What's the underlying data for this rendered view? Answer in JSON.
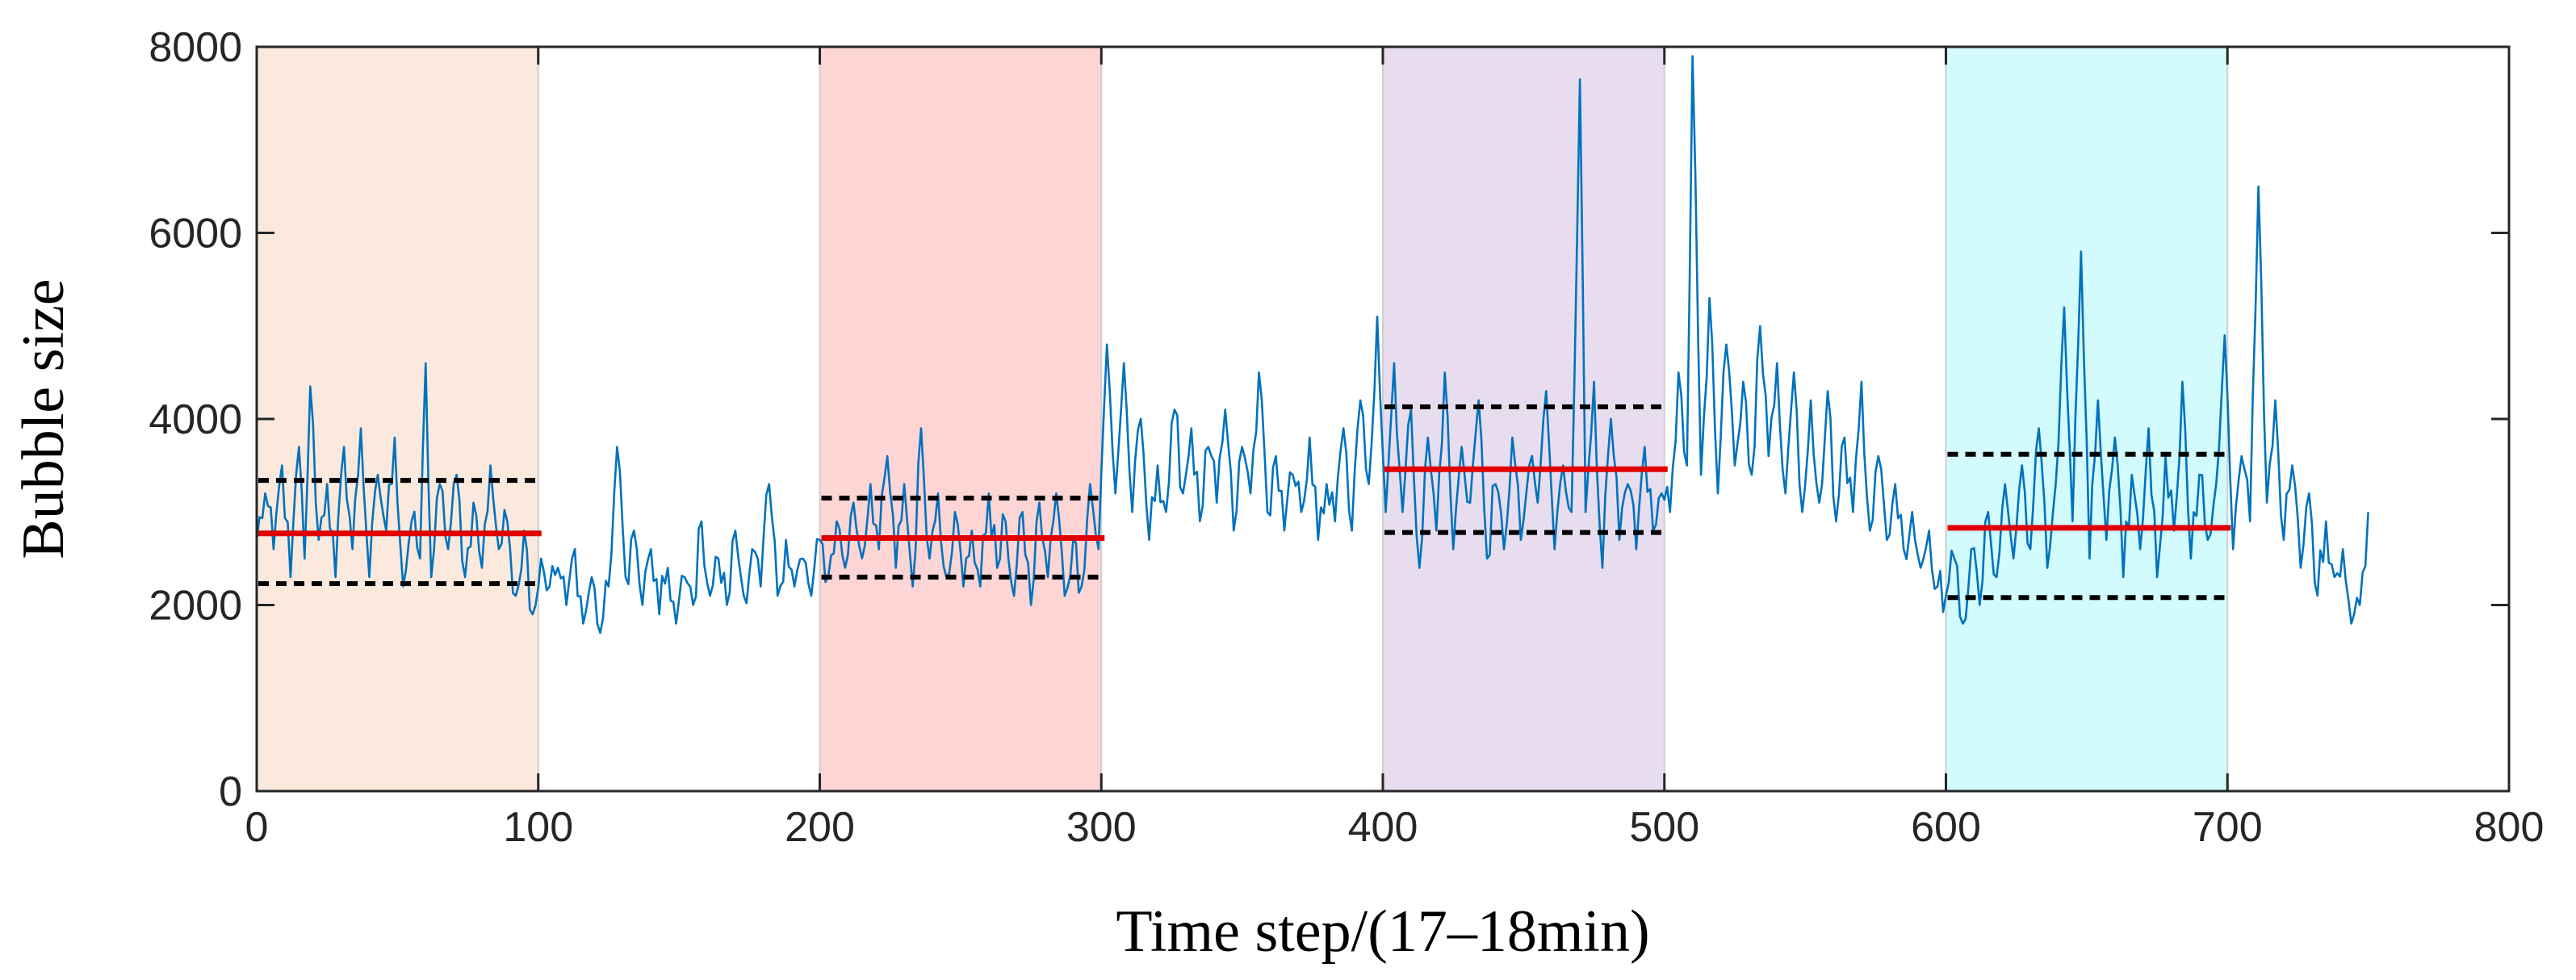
{
  "chart_data": {
    "type": "line",
    "title": "",
    "xlabel": "Time step/(17–18min)",
    "ylabel": "Bubble size",
    "xlim": [
      0,
      800
    ],
    "ylim": [
      0,
      8000
    ],
    "xticks": [
      0,
      100,
      200,
      300,
      400,
      500,
      600,
      700,
      800
    ],
    "yticks": [
      0,
      2000,
      4000,
      6000,
      8000
    ],
    "grid": false,
    "line_color": "#0072BD",
    "anchors": [
      [
        0,
        2700
      ],
      [
        3,
        3200
      ],
      [
        6,
        2600
      ],
      [
        9,
        3500
      ],
      [
        12,
        2300
      ],
      [
        15,
        3700
      ],
      [
        17,
        2500
      ],
      [
        19,
        4350
      ],
      [
        22,
        2700
      ],
      [
        25,
        3300
      ],
      [
        28,
        2300
      ],
      [
        31,
        3700
      ],
      [
        34,
        2600
      ],
      [
        37,
        3900
      ],
      [
        40,
        2300
      ],
      [
        43,
        3400
      ],
      [
        46,
        2800
      ],
      [
        49,
        3800
      ],
      [
        52,
        2200
      ],
      [
        55,
        2900
      ],
      [
        58,
        2500
      ],
      [
        60,
        4600
      ],
      [
        62,
        2300
      ],
      [
        65,
        3300
      ],
      [
        68,
        2600
      ],
      [
        71,
        3400
      ],
      [
        74,
        2300
      ],
      [
        77,
        3100
      ],
      [
        80,
        2400
      ],
      [
        83,
        3500
      ],
      [
        86,
        2600
      ],
      [
        89,
        2900
      ],
      [
        92,
        2100
      ],
      [
        95,
        2800
      ],
      [
        98,
        1900
      ],
      [
        101,
        2500
      ],
      [
        104,
        2200
      ],
      [
        107,
        2400
      ],
      [
        110,
        2000
      ],
      [
        113,
        2600
      ],
      [
        116,
        1800
      ],
      [
        119,
        2300
      ],
      [
        122,
        1700
      ],
      [
        125,
        2200
      ],
      [
        128,
        3700
      ],
      [
        131,
        2300
      ],
      [
        134,
        2800
      ],
      [
        137,
        2000
      ],
      [
        140,
        2600
      ],
      [
        143,
        1900
      ],
      [
        146,
        2400
      ],
      [
        149,
        1800
      ],
      [
        152,
        2300
      ],
      [
        155,
        2000
      ],
      [
        158,
        2900
      ],
      [
        161,
        2100
      ],
      [
        164,
        2500
      ],
      [
        167,
        2000
      ],
      [
        170,
        2800
      ],
      [
        173,
        2100
      ],
      [
        176,
        2600
      ],
      [
        179,
        2200
      ],
      [
        182,
        3300
      ],
      [
        185,
        2100
      ],
      [
        188,
        2700
      ],
      [
        191,
        2200
      ],
      [
        194,
        2500
      ],
      [
        197,
        2100
      ],
      [
        200,
        2700
      ],
      [
        203,
        2300
      ],
      [
        206,
        2900
      ],
      [
        209,
        2400
      ],
      [
        212,
        3100
      ],
      [
        215,
        2500
      ],
      [
        218,
        3300
      ],
      [
        221,
        2600
      ],
      [
        224,
        3600
      ],
      [
        227,
        2400
      ],
      [
        230,
        3300
      ],
      [
        233,
        2200
      ],
      [
        236,
        3900
      ],
      [
        239,
        2500
      ],
      [
        242,
        3200
      ],
      [
        245,
        2300
      ],
      [
        248,
        3000
      ],
      [
        251,
        2200
      ],
      [
        254,
        2800
      ],
      [
        257,
        2200
      ],
      [
        260,
        3200
      ],
      [
        263,
        2400
      ],
      [
        266,
        2900
      ],
      [
        269,
        2100
      ],
      [
        272,
        3000
      ],
      [
        275,
        2000
      ],
      [
        278,
        3100
      ],
      [
        281,
        2300
      ],
      [
        284,
        3200
      ],
      [
        287,
        2100
      ],
      [
        290,
        2700
      ],
      [
        293,
        2200
      ],
      [
        296,
        3300
      ],
      [
        299,
        2600
      ],
      [
        302,
        4800
      ],
      [
        305,
        3200
      ],
      [
        308,
        4600
      ],
      [
        311,
        3000
      ],
      [
        314,
        4000
      ],
      [
        317,
        2700
      ],
      [
        320,
        3500
      ],
      [
        323,
        3000
      ],
      [
        326,
        4100
      ],
      [
        329,
        3200
      ],
      [
        332,
        3900
      ],
      [
        335,
        2900
      ],
      [
        338,
        3700
      ],
      [
        341,
        3100
      ],
      [
        344,
        4100
      ],
      [
        347,
        2800
      ],
      [
        350,
        3700
      ],
      [
        353,
        3200
      ],
      [
        356,
        4500
      ],
      [
        359,
        3000
      ],
      [
        362,
        3600
      ],
      [
        365,
        2800
      ],
      [
        368,
        3400
      ],
      [
        371,
        3000
      ],
      [
        374,
        3800
      ],
      [
        377,
        2700
      ],
      [
        380,
        3300
      ],
      [
        383,
        2900
      ],
      [
        386,
        3900
      ],
      [
        389,
        2800
      ],
      [
        392,
        4200
      ],
      [
        395,
        3300
      ],
      [
        398,
        5100
      ],
      [
        401,
        3000
      ],
      [
        404,
        4600
      ],
      [
        407,
        3000
      ],
      [
        410,
        4100
      ],
      [
        413,
        2400
      ],
      [
        416,
        3800
      ],
      [
        419,
        2800
      ],
      [
        422,
        4500
      ],
      [
        425,
        2600
      ],
      [
        428,
        3700
      ],
      [
        431,
        3100
      ],
      [
        434,
        4200
      ],
      [
        437,
        2500
      ],
      [
        440,
        3300
      ],
      [
        443,
        2600
      ],
      [
        446,
        3800
      ],
      [
        449,
        2700
      ],
      [
        452,
        3500
      ],
      [
        455,
        3100
      ],
      [
        458,
        4300
      ],
      [
        461,
        2600
      ],
      [
        464,
        3500
      ],
      [
        467,
        3000
      ],
      [
        470,
        7650
      ],
      [
        472,
        3000
      ],
      [
        475,
        4400
      ],
      [
        478,
        2400
      ],
      [
        481,
        4000
      ],
      [
        484,
        2700
      ],
      [
        487,
        3300
      ],
      [
        490,
        2600
      ],
      [
        493,
        3700
      ],
      [
        496,
        2800
      ],
      [
        499,
        3200
      ],
      [
        502,
        3000
      ],
      [
        505,
        4500
      ],
      [
        508,
        3500
      ],
      [
        510,
        7900
      ],
      [
        513,
        3400
      ],
      [
        516,
        5300
      ],
      [
        519,
        3200
      ],
      [
        522,
        4800
      ],
      [
        525,
        3500
      ],
      [
        528,
        4400
      ],
      [
        531,
        3400
      ],
      [
        534,
        5000
      ],
      [
        537,
        3600
      ],
      [
        540,
        4600
      ],
      [
        543,
        3200
      ],
      [
        546,
        4500
      ],
      [
        549,
        3000
      ],
      [
        552,
        4200
      ],
      [
        555,
        3100
      ],
      [
        558,
        4300
      ],
      [
        561,
        2900
      ],
      [
        564,
        3800
      ],
      [
        567,
        3000
      ],
      [
        570,
        4400
      ],
      [
        573,
        2800
      ],
      [
        576,
        3600
      ],
      [
        579,
        2700
      ],
      [
        582,
        3300
      ],
      [
        585,
        2600
      ],
      [
        588,
        3000
      ],
      [
        591,
        2400
      ],
      [
        594,
        2800
      ],
      [
        597,
        2200
      ],
      [
        600,
        2100
      ],
      [
        603,
        2500
      ],
      [
        606,
        1800
      ],
      [
        609,
        2600
      ],
      [
        612,
        2000
      ],
      [
        615,
        3000
      ],
      [
        618,
        2300
      ],
      [
        621,
        3300
      ],
      [
        624,
        2500
      ],
      [
        627,
        3500
      ],
      [
        630,
        2600
      ],
      [
        633,
        3900
      ],
      [
        636,
        2400
      ],
      [
        639,
        3300
      ],
      [
        642,
        5200
      ],
      [
        645,
        2900
      ],
      [
        648,
        5800
      ],
      [
        651,
        2500
      ],
      [
        654,
        4200
      ],
      [
        657,
        2700
      ],
      [
        660,
        3800
      ],
      [
        663,
        2300
      ],
      [
        666,
        3400
      ],
      [
        669,
        2600
      ],
      [
        672,
        3900
      ],
      [
        675,
        2300
      ],
      [
        678,
        3600
      ],
      [
        681,
        2800
      ],
      [
        684,
        4400
      ],
      [
        687,
        2500
      ],
      [
        690,
        3400
      ],
      [
        693,
        2700
      ],
      [
        696,
        3300
      ],
      [
        699,
        4900
      ],
      [
        702,
        2600
      ],
      [
        705,
        3600
      ],
      [
        708,
        2900
      ],
      [
        711,
        6500
      ],
      [
        714,
        3100
      ],
      [
        717,
        4200
      ],
      [
        720,
        2700
      ],
      [
        723,
        3500
      ],
      [
        726,
        2400
      ],
      [
        729,
        3200
      ],
      [
        732,
        2100
      ],
      [
        735,
        2900
      ],
      [
        738,
        2300
      ],
      [
        741,
        2600
      ],
      [
        744,
        1800
      ],
      [
        747,
        2000
      ],
      [
        750,
        3000
      ]
    ],
    "regions": [
      {
        "x_start": 0,
        "x_end": 100,
        "color": "#FBE9DE",
        "mean": 2770,
        "upper": 3340,
        "lower": 2230
      },
      {
        "x_start": 200,
        "x_end": 300,
        "color": "#FDD5D5",
        "mean": 2720,
        "upper": 3150,
        "lower": 2300
      },
      {
        "x_start": 400,
        "x_end": 500,
        "color": "#E8DDEF",
        "mean": 3460,
        "upper": 4130,
        "lower": 2780
      },
      {
        "x_start": 600,
        "x_end": 700,
        "color": "#D3FAFC",
        "mean": 2830,
        "upper": 3620,
        "lower": 2080
      }
    ]
  }
}
